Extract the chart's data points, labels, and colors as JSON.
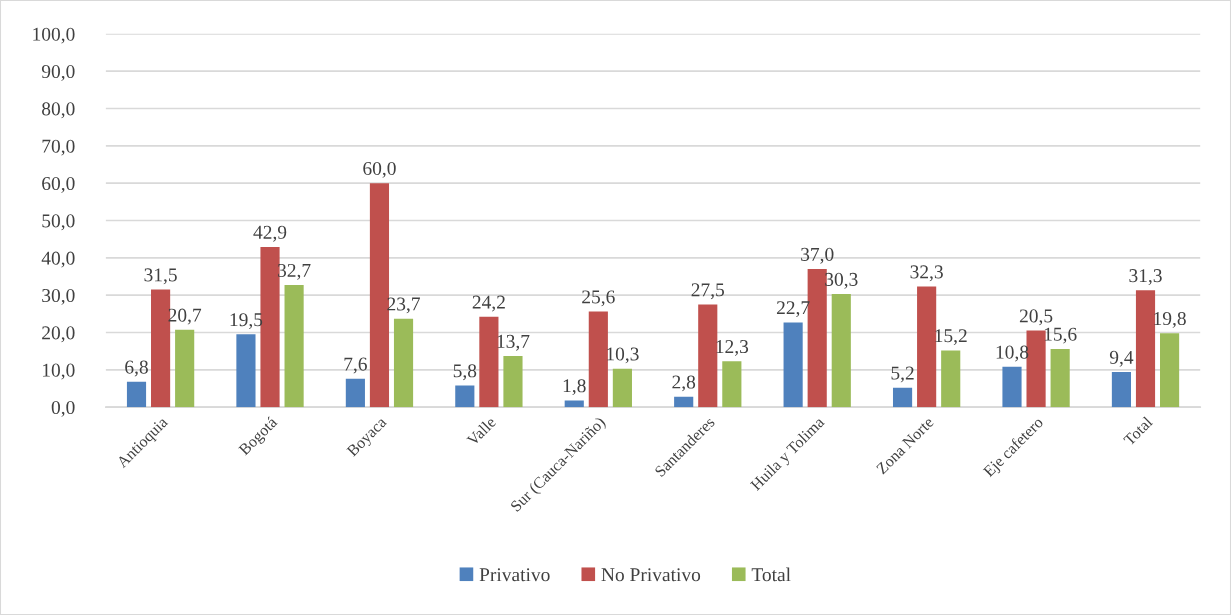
{
  "chart_data": {
    "type": "bar",
    "categories": [
      "Antioquia",
      "Bogotá",
      "Boyaca",
      "Valle",
      "Sur (Cauca-Nariño)",
      "Santanderes",
      "Huila y Tolima",
      "Zona Norte",
      "Eje cafetero",
      "Total"
    ],
    "series": [
      {
        "name": "Privativo",
        "color": "#4f81bd",
        "values": [
          6.8,
          19.5,
          7.6,
          5.8,
          1.8,
          2.8,
          22.7,
          5.2,
          10.8,
          9.4
        ],
        "value_labels": [
          "6,8",
          "19,5",
          "7,6",
          "5,8",
          "1,8",
          "2,8",
          "22,7",
          "5,2",
          "10,8",
          "9,4"
        ]
      },
      {
        "name": "No Privativo",
        "color": "#c0504d",
        "values": [
          31.5,
          42.9,
          60.0,
          24.2,
          25.6,
          27.5,
          37.0,
          32.3,
          20.5,
          31.3
        ],
        "value_labels": [
          "31,5",
          "42,9",
          "60,0",
          "24,2",
          "25,6",
          "27,5",
          "37,0",
          "32,3",
          "20,5",
          "31,3"
        ]
      },
      {
        "name": "Total",
        "color": "#9bbb59",
        "values": [
          20.7,
          32.7,
          23.7,
          13.7,
          10.3,
          12.3,
          30.3,
          15.2,
          15.6,
          19.8
        ],
        "value_labels": [
          "20,7",
          "32,7",
          "23,7",
          "13,7",
          "10,3",
          "12,3",
          "30,3",
          "15,2",
          "15,6",
          "19,8"
        ]
      }
    ],
    "ylim": [
      0,
      100
    ],
    "yticks": [
      {
        "value": 0,
        "label": "0,0"
      },
      {
        "value": 10,
        "label": "10,0"
      },
      {
        "value": 20,
        "label": "20,0"
      },
      {
        "value": 30,
        "label": "30,0"
      },
      {
        "value": 40,
        "label": "40,0"
      },
      {
        "value": 50,
        "label": "50,0"
      },
      {
        "value": 60,
        "label": "60,0"
      },
      {
        "value": 70,
        "label": "70,0"
      },
      {
        "value": 80,
        "label": "80,0"
      },
      {
        "value": 90,
        "label": "90,0"
      },
      {
        "value": 100,
        "label": "100,0"
      }
    ],
    "grid": "y",
    "legend": "bottom"
  }
}
